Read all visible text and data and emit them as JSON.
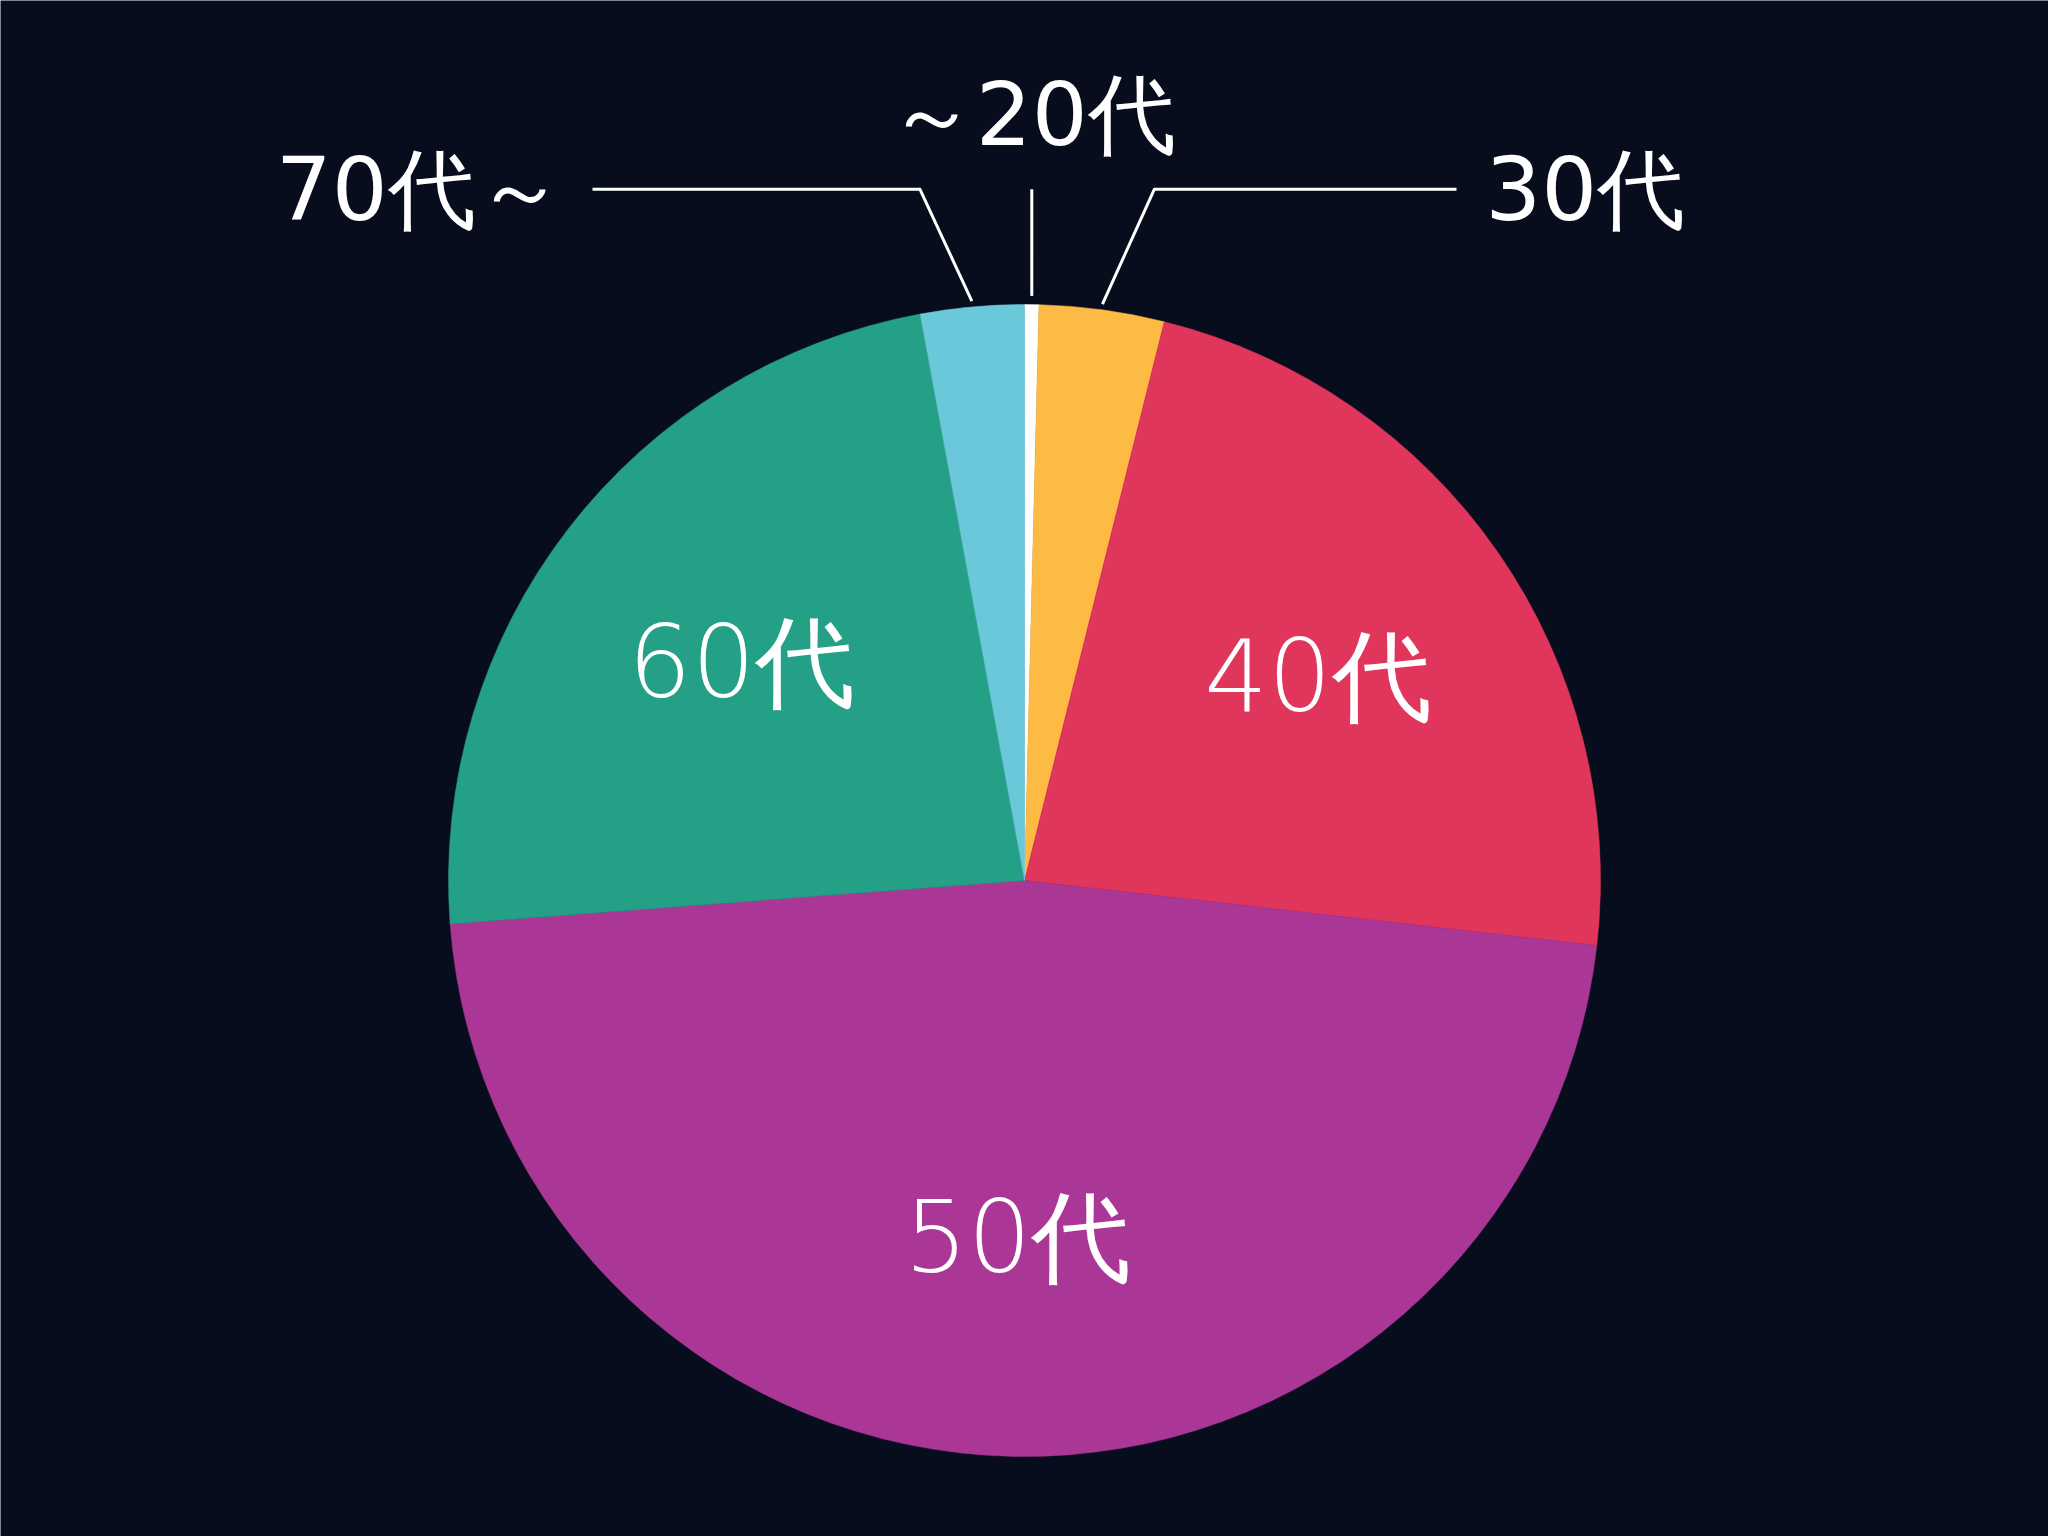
{
  "chart_data": {
    "type": "pie",
    "categories": [
      "～20代",
      "30代",
      "40代",
      "50代",
      "60代",
      "70代～"
    ],
    "values": [
      0.4,
      3.5,
      22.9,
      47.0,
      23.3,
      2.9
    ],
    "colors": [
      "#ffffff",
      "#fdbb45",
      "#e0365c",
      "#aa3796",
      "#24a086",
      "#6bc8db"
    ]
  }
}
